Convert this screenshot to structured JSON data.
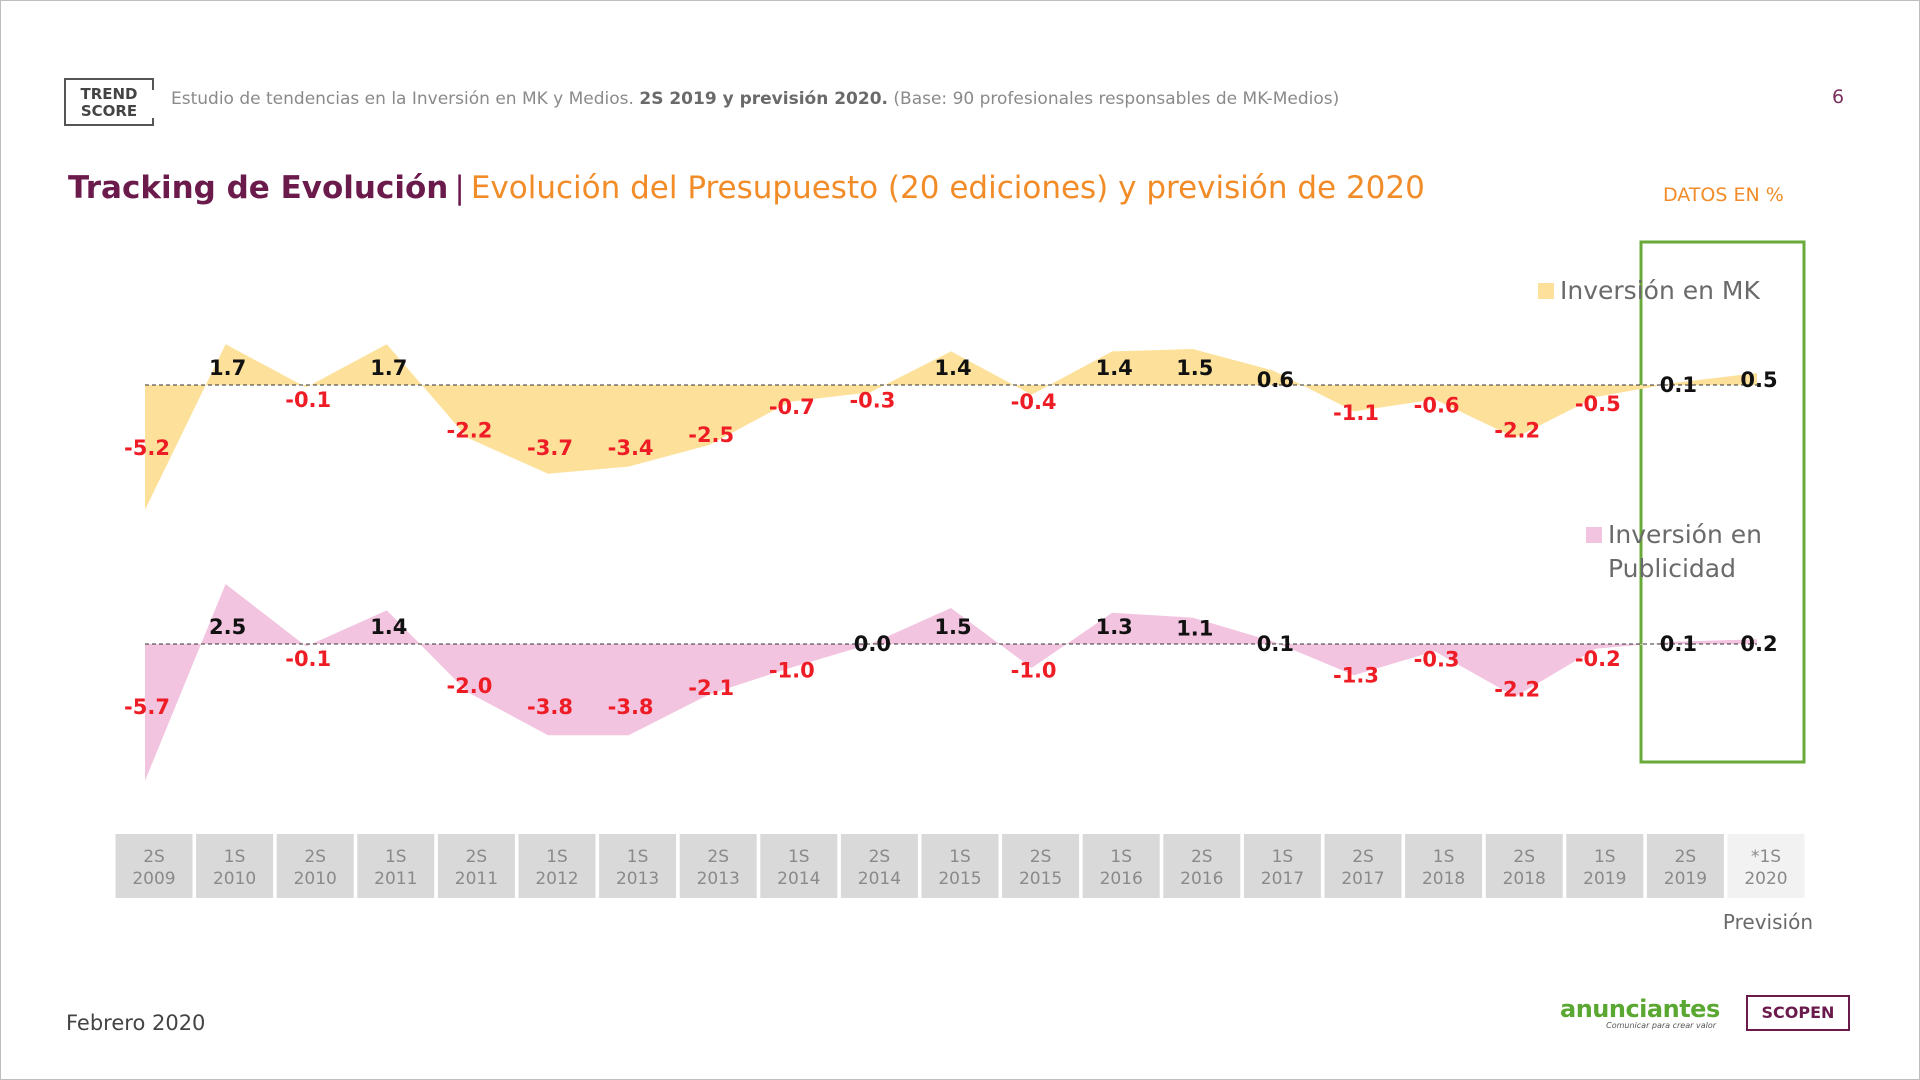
{
  "header": {
    "logo_line1": "TREND",
    "logo_line2": "SCORE",
    "study_text": "Estudio de tendencias en la Inversión en MK y Medios.",
    "study_bold": "2S 2019 y previsión 2020.",
    "study_base": "(Base: 90 profesionales responsables de MK-Medios)",
    "page_number": "6"
  },
  "title": {
    "main": "Tracking de Evolución",
    "separator": "|",
    "subtitle": "Evolución del Presupuesto (20 ediciones) y previsión de 2020",
    "units_note": "DATOS EN %"
  },
  "footer": {
    "date": "Febrero 2020",
    "logo_anunciantes": "anunciantes",
    "logo_anunciantes_tagline": "Comunicar para crear valor",
    "logo_scopen": "SCOPEN"
  },
  "chart_data": {
    "type": "area",
    "categories": [
      [
        "2S",
        "2009"
      ],
      [
        "1S",
        "2010"
      ],
      [
        "2S",
        "2010"
      ],
      [
        "1S",
        "2011"
      ],
      [
        "2S",
        "2011"
      ],
      [
        "1S",
        "2012"
      ],
      [
        "1S",
        "2013"
      ],
      [
        "2S",
        "2013"
      ],
      [
        "1S",
        "2014"
      ],
      [
        "2S",
        "2014"
      ],
      [
        "1S",
        "2015"
      ],
      [
        "2S",
        "2015"
      ],
      [
        "1S",
        "2016"
      ],
      [
        "2S",
        "2016"
      ],
      [
        "1S",
        "2017"
      ],
      [
        "2S",
        "2017"
      ],
      [
        "1S",
        "2018"
      ],
      [
        "2S",
        "2018"
      ],
      [
        "1S",
        "2019"
      ],
      [
        "2S",
        "2019"
      ],
      [
        "*1S",
        "2020"
      ]
    ],
    "series": [
      {
        "name": "Inversión en MK",
        "color": "#fde19a",
        "values": [
          -5.2,
          1.7,
          -0.1,
          1.7,
          -2.2,
          -3.7,
          -3.4,
          -2.5,
          -0.7,
          -0.3,
          1.4,
          -0.4,
          1.4,
          1.5,
          0.6,
          -1.1,
          -0.6,
          -2.2,
          -0.5,
          0.1,
          0.5
        ],
        "labels": [
          "-5.2",
          "1.7",
          "-0.1",
          "1.7",
          "-2.2",
          "-3.7",
          "-3.4",
          "-2.5",
          "-0.7",
          "-0.3",
          "1.4",
          "-0.4",
          "1.4",
          "1.5",
          "0.6",
          "-1.1",
          "-0.6",
          "-2.2",
          "-0.5",
          "0.1",
          "0.5"
        ]
      },
      {
        "name": "Inversión en Publicidad",
        "name_lines": [
          "Inversión en",
          "Publicidad"
        ],
        "color": "#f2c4e0",
        "values": [
          -5.7,
          2.5,
          -0.1,
          1.4,
          -2.0,
          -3.8,
          -3.8,
          -2.1,
          -1.0,
          0.0,
          1.5,
          -1.0,
          1.3,
          1.1,
          0.1,
          -1.3,
          -0.3,
          -2.2,
          -0.2,
          0.1,
          0.2
        ],
        "labels": [
          "-5.7",
          "2.5",
          "-0.1",
          "1.4",
          "-2.0",
          "-3.8",
          "-3.8",
          "-2.1",
          "-1.0",
          "0.0",
          "1.5",
          "-1.0",
          "1.3",
          "1.1",
          "0.1",
          "-1.3",
          "-0.3",
          "-2.2",
          "-0.2",
          "0.1",
          "0.2"
        ]
      }
    ],
    "label_colors": {
      "negative": "#ee1c25",
      "positive": "#111111"
    },
    "category_box_color": "#d9d9d9",
    "forecast_box_color": "#f2f2f2",
    "highlight_border_color": "#6aaa3a",
    "forecast_note": "Previsión"
  }
}
